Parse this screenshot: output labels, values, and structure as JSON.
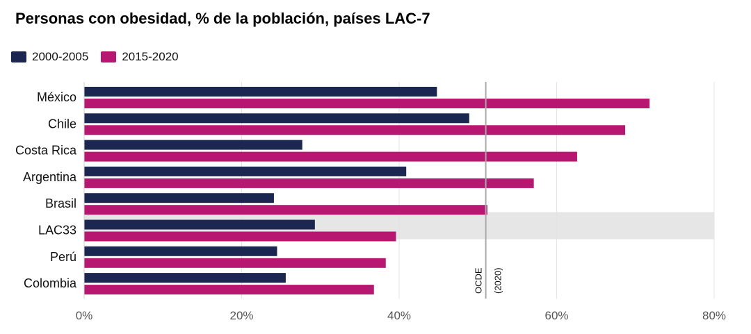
{
  "chart_data": {
    "type": "bar",
    "orientation": "horizontal",
    "title": "Personas con obesidad, % de la población, países LAC-7",
    "categories": [
      "México",
      "Chile",
      "Costa Rica",
      "Argentina",
      "Brasil",
      "LAC33",
      "Perú",
      "Colombia"
    ],
    "series": [
      {
        "name": "2000-2005",
        "color": "#1c2751",
        "values": [
          44.8,
          48.9,
          27.7,
          40.9,
          24.1,
          29.3,
          24.5,
          25.6
        ]
      },
      {
        "name": "2015-2020",
        "color": "#b71771",
        "values": [
          71.8,
          68.7,
          62.6,
          57.1,
          51.2,
          39.6,
          38.3,
          36.8
        ]
      }
    ],
    "highlight_category": "LAC33",
    "highlight_color": "#e6e6e6",
    "reference_line": {
      "value": 51.0,
      "label_line1": "OCDE",
      "label_line2": "(2020)"
    },
    "xlim": [
      0,
      80
    ],
    "xticks": [
      "0%",
      "20%",
      "40%",
      "60%",
      "80%"
    ],
    "xtick_values": [
      0,
      20,
      40,
      60,
      80
    ],
    "grid": true,
    "legend_position": "top-left"
  }
}
